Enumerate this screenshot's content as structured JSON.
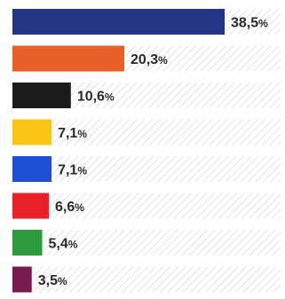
{
  "chart_data": {
    "type": "bar",
    "orientation": "horizontal",
    "grid": false,
    "xlim": [
      0,
      38.5
    ],
    "series": [
      {
        "values": [
          38.5,
          20.3,
          10.6,
          7.1,
          7.1,
          6.6,
          5.4,
          3.5
        ],
        "labels": [
          "38,5",
          "20,3",
          "10,6",
          "7,1",
          "7,1",
          "6,6",
          "5,4",
          "3,5"
        ],
        "unit": "%",
        "colors": [
          "#243584",
          "#e85f27",
          "#1b1b1b",
          "#f9c613",
          "#1f4fd2",
          "#e8202a",
          "#2d9a3d",
          "#7a1a52"
        ]
      }
    ]
  }
}
